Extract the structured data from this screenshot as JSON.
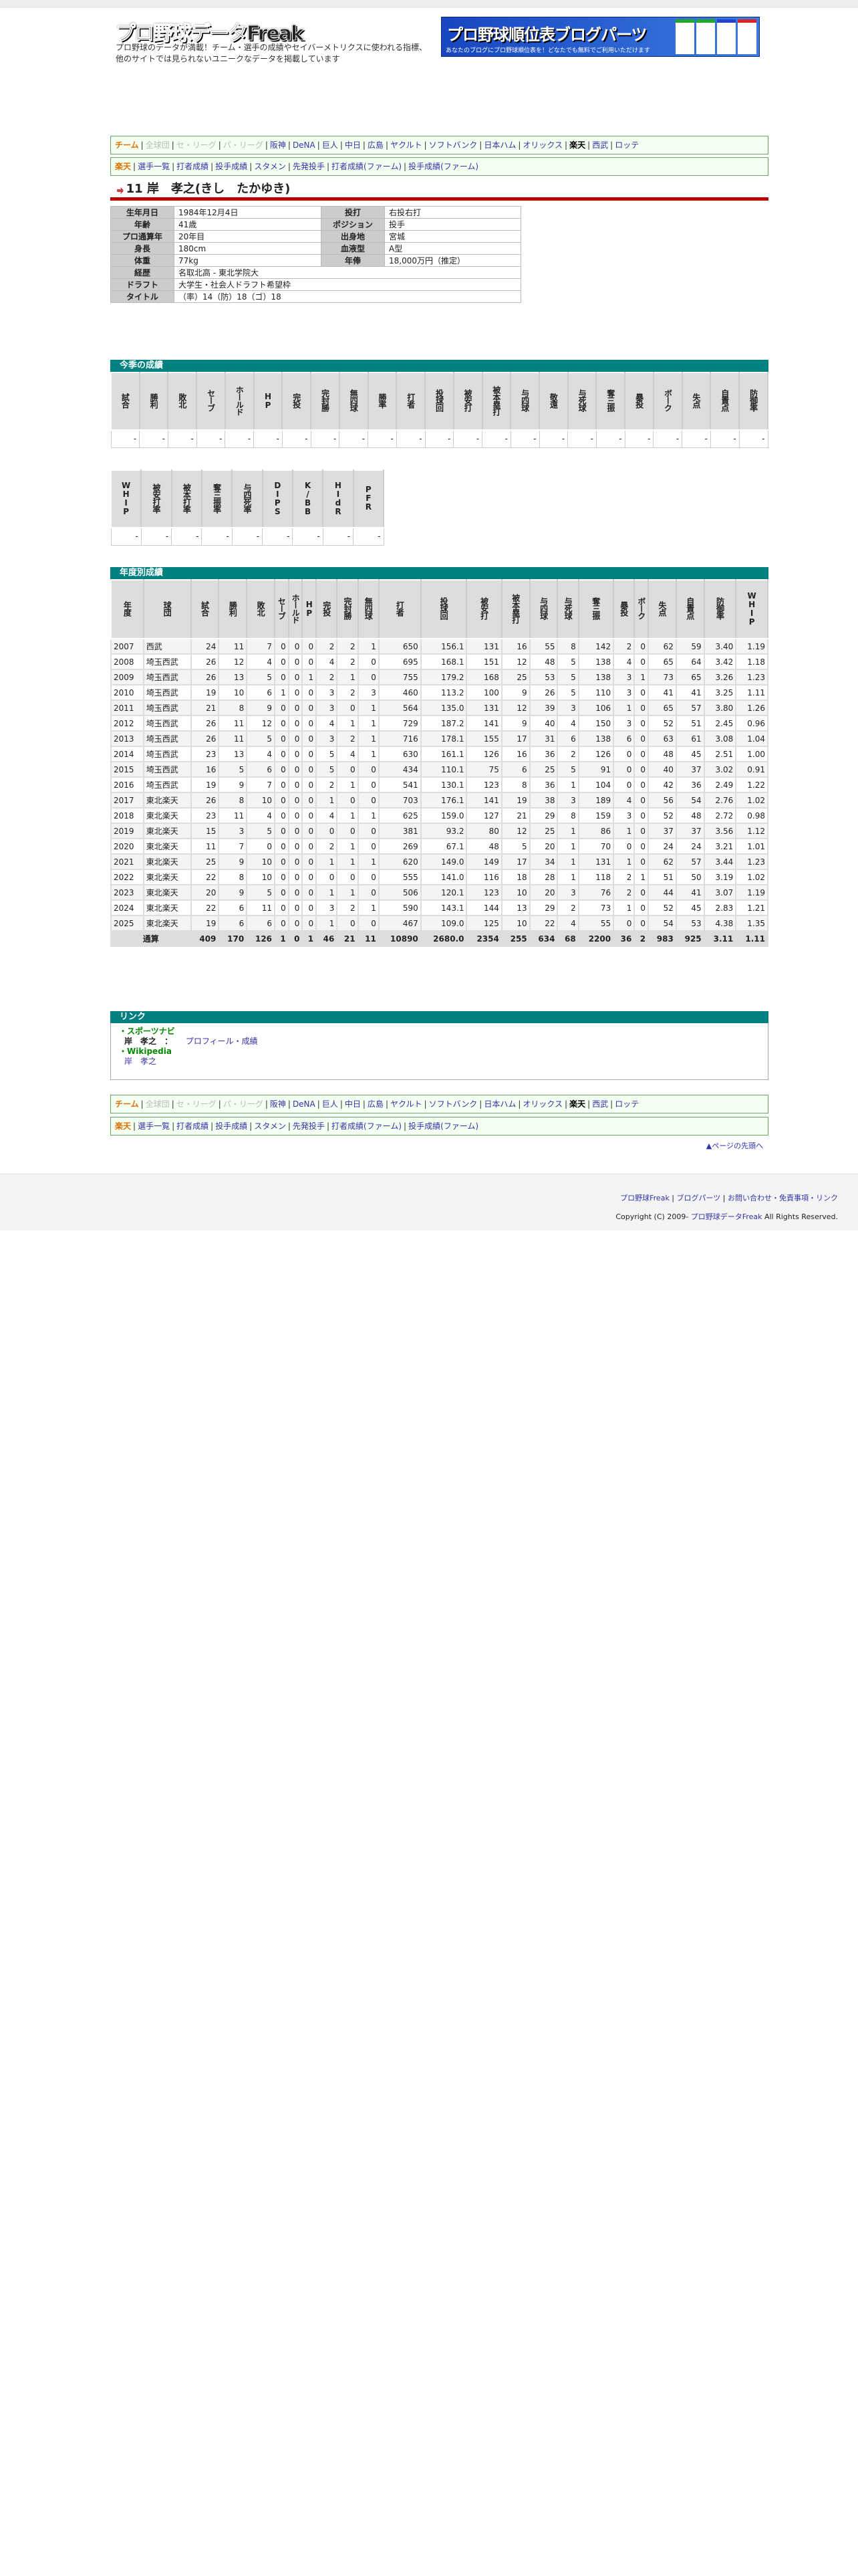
{
  "header": {
    "logo": "プロ野球データFreak",
    "tagline": "プロ野球のデータが満載！チーム・選手の成績やセイバーメトリクスに使われる指標、他のサイトでは見られないユニークなデータを掲載しています",
    "banner_title": "プロ野球順位表ブログパーツ",
    "banner_sub": "あなたのブログにプロ野球順位表を！どなたでも無料でご利用いただけます"
  },
  "nav_teams": {
    "label": "チーム",
    "items": [
      {
        "t": "全球団",
        "s": "g"
      },
      {
        "t": "セ・リーグ",
        "s": "g"
      },
      {
        "t": "パ・リーグ",
        "s": "g"
      },
      {
        "t": "阪神"
      },
      {
        "t": "DeNA"
      },
      {
        "t": "巨人"
      },
      {
        "t": "中日"
      },
      {
        "t": "広島"
      },
      {
        "t": "ヤクルト"
      },
      {
        "t": "ソフトバンク"
      },
      {
        "t": "日本ハム"
      },
      {
        "t": "オリックス"
      },
      {
        "t": "楽天",
        "s": "cur"
      },
      {
        "t": "西武"
      },
      {
        "t": "ロッテ"
      }
    ]
  },
  "nav_team": {
    "label": "楽天",
    "items": [
      {
        "t": "選手一覧"
      },
      {
        "t": "打者成績"
      },
      {
        "t": "投手成績"
      },
      {
        "t": "スタメン"
      },
      {
        "t": "先発投手"
      },
      {
        "t": "打者成績(ファーム)"
      },
      {
        "t": "投手成績(ファーム)"
      }
    ]
  },
  "player": {
    "title": "11 岸　孝之(きし　たかゆき)",
    "team_icon": "eagles-logo-icon"
  },
  "profile": [
    [
      "生年月日",
      "1984年12月4日",
      "投打",
      "右投右打"
    ],
    [
      "年齢",
      "41歳",
      "ポジション",
      "投手"
    ],
    [
      "プロ通算年",
      "20年目",
      "出身地",
      "宮城"
    ],
    [
      "身長",
      "180cm",
      "血液型",
      "A型"
    ],
    [
      "体重",
      "77kg",
      "年俸",
      "18,000万円（推定）"
    ],
    [
      "経歴",
      "名取北高 - 東北学院大"
    ],
    [
      "ドラフト",
      "大学生・社会人ドラフト希望枠"
    ],
    [
      "タイトル",
      "（率）14（防）18（ゴ）18"
    ]
  ],
  "season": {
    "title": "今季の成績",
    "headers": [
      "試合",
      "勝利",
      "敗北",
      "セーブ",
      "ホールド",
      "HP",
      "完投",
      "完封勝",
      "無四球",
      "勝率",
      "打者",
      "投球回",
      "被安打",
      "被本塁打",
      "与四球",
      "敬遠",
      "与死球",
      "奪三振",
      "暴投",
      "ボーク",
      "失点",
      "自責点",
      "防御率"
    ],
    "values": [
      "-",
      "-",
      "-",
      "-",
      "-",
      "-",
      "-",
      "-",
      "-",
      "-",
      "-",
      "-",
      "-",
      "-",
      "-",
      "-",
      "-",
      "-",
      "-",
      "-",
      "-",
      "-",
      "-"
    ],
    "headers2": [
      "WHIP",
      "被安打率",
      "被本打率",
      "奪三振率",
      "与四死率",
      "DIPS",
      "K/BB",
      "HIdR",
      "PFR"
    ],
    "values2": [
      "-",
      "-",
      "-",
      "-",
      "-",
      "-",
      "-",
      "-",
      "-"
    ]
  },
  "yearly": {
    "title": "年度別成績",
    "headers": [
      "年度",
      "球団",
      "試合",
      "勝利",
      "敗北",
      "セーブ",
      "ホールド",
      "HP",
      "完投",
      "完封勝",
      "無四球",
      "打者",
      "投球回",
      "被安打",
      "被本塁打",
      "与四球",
      "与死球",
      "奪三振",
      "暴投",
      "ボーク",
      "失点",
      "自責点",
      "防御率",
      "WHIP"
    ],
    "rows": [
      [
        "2007",
        "西武",
        "24",
        "11",
        "7",
        "0",
        "0",
        "0",
        "2",
        "2",
        "1",
        "650",
        "156.1",
        "131",
        "16",
        "55",
        "8",
        "142",
        "2",
        "0",
        "62",
        "59",
        "3.40",
        "1.19"
      ],
      [
        "2008",
        "埼玉西武",
        "26",
        "12",
        "4",
        "0",
        "0",
        "0",
        "4",
        "2",
        "0",
        "695",
        "168.1",
        "151",
        "12",
        "48",
        "5",
        "138",
        "4",
        "0",
        "65",
        "64",
        "3.42",
        "1.18"
      ],
      [
        "2009",
        "埼玉西武",
        "26",
        "13",
        "5",
        "0",
        "0",
        "1",
        "2",
        "1",
        "0",
        "755",
        "179.2",
        "168",
        "25",
        "53",
        "5",
        "138",
        "3",
        "1",
        "73",
        "65",
        "3.26",
        "1.23"
      ],
      [
        "2010",
        "埼玉西武",
        "19",
        "10",
        "6",
        "1",
        "0",
        "0",
        "3",
        "2",
        "3",
        "460",
        "113.2",
        "100",
        "9",
        "26",
        "5",
        "110",
        "3",
        "0",
        "41",
        "41",
        "3.25",
        "1.11"
      ],
      [
        "2011",
        "埼玉西武",
        "21",
        "8",
        "9",
        "0",
        "0",
        "0",
        "3",
        "0",
        "1",
        "564",
        "135.0",
        "131",
        "12",
        "39",
        "3",
        "106",
        "1",
        "0",
        "65",
        "57",
        "3.80",
        "1.26"
      ],
      [
        "2012",
        "埼玉西武",
        "26",
        "11",
        "12",
        "0",
        "0",
        "0",
        "4",
        "1",
        "1",
        "729",
        "187.2",
        "141",
        "9",
        "40",
        "4",
        "150",
        "3",
        "0",
        "52",
        "51",
        "2.45",
        "0.96"
      ],
      [
        "2013",
        "埼玉西武",
        "26",
        "11",
        "5",
        "0",
        "0",
        "0",
        "3",
        "2",
        "1",
        "716",
        "178.1",
        "155",
        "17",
        "31",
        "6",
        "138",
        "6",
        "0",
        "63",
        "61",
        "3.08",
        "1.04"
      ],
      [
        "2014",
        "埼玉西武",
        "23",
        "13",
        "4",
        "0",
        "0",
        "0",
        "5",
        "4",
        "1",
        "630",
        "161.1",
        "126",
        "16",
        "36",
        "2",
        "126",
        "0",
        "0",
        "48",
        "45",
        "2.51",
        "1.00"
      ],
      [
        "2015",
        "埼玉西武",
        "16",
        "5",
        "6",
        "0",
        "0",
        "0",
        "5",
        "0",
        "0",
        "434",
        "110.1",
        "75",
        "6",
        "25",
        "5",
        "91",
        "0",
        "0",
        "40",
        "37",
        "3.02",
        "0.91"
      ],
      [
        "2016",
        "埼玉西武",
        "19",
        "9",
        "7",
        "0",
        "0",
        "0",
        "2",
        "1",
        "0",
        "541",
        "130.1",
        "123",
        "8",
        "36",
        "1",
        "104",
        "0",
        "0",
        "42",
        "36",
        "2.49",
        "1.22"
      ],
      [
        "2017",
        "東北楽天",
        "26",
        "8",
        "10",
        "0",
        "0",
        "0",
        "1",
        "0",
        "0",
        "703",
        "176.1",
        "141",
        "19",
        "38",
        "3",
        "189",
        "4",
        "0",
        "56",
        "54",
        "2.76",
        "1.02"
      ],
      [
        "2018",
        "東北楽天",
        "23",
        "11",
        "4",
        "0",
        "0",
        "0",
        "4",
        "1",
        "1",
        "625",
        "159.0",
        "127",
        "21",
        "29",
        "8",
        "159",
        "3",
        "0",
        "52",
        "48",
        "2.72",
        "0.98"
      ],
      [
        "2019",
        "東北楽天",
        "15",
        "3",
        "5",
        "0",
        "0",
        "0",
        "0",
        "0",
        "0",
        "381",
        "93.2",
        "80",
        "12",
        "25",
        "1",
        "86",
        "1",
        "0",
        "37",
        "37",
        "3.56",
        "1.12"
      ],
      [
        "2020",
        "東北楽天",
        "11",
        "7",
        "0",
        "0",
        "0",
        "0",
        "2",
        "1",
        "0",
        "269",
        "67.1",
        "48",
        "5",
        "20",
        "1",
        "70",
        "0",
        "0",
        "24",
        "24",
        "3.21",
        "1.01"
      ],
      [
        "2021",
        "東北楽天",
        "25",
        "9",
        "10",
        "0",
        "0",
        "0",
        "1",
        "1",
        "1",
        "620",
        "149.0",
        "149",
        "17",
        "34",
        "1",
        "131",
        "1",
        "0",
        "62",
        "57",
        "3.44",
        "1.23"
      ],
      [
        "2022",
        "東北楽天",
        "22",
        "8",
        "10",
        "0",
        "0",
        "0",
        "0",
        "0",
        "0",
        "555",
        "141.0",
        "116",
        "18",
        "28",
        "1",
        "118",
        "2",
        "1",
        "51",
        "50",
        "3.19",
        "1.02"
      ],
      [
        "2023",
        "東北楽天",
        "20",
        "9",
        "5",
        "0",
        "0",
        "0",
        "1",
        "1",
        "0",
        "506",
        "120.1",
        "123",
        "10",
        "20",
        "3",
        "76",
        "2",
        "0",
        "44",
        "41",
        "3.07",
        "1.19"
      ],
      [
        "2024",
        "東北楽天",
        "22",
        "6",
        "11",
        "0",
        "0",
        "0",
        "3",
        "2",
        "1",
        "590",
        "143.1",
        "144",
        "13",
        "29",
        "2",
        "73",
        "1",
        "0",
        "52",
        "45",
        "2.83",
        "1.21"
      ],
      [
        "2025",
        "東北楽天",
        "19",
        "6",
        "6",
        "0",
        "0",
        "0",
        "1",
        "0",
        "0",
        "467",
        "109.0",
        "125",
        "10",
        "22",
        "4",
        "55",
        "0",
        "0",
        "54",
        "53",
        "4.38",
        "1.35"
      ]
    ],
    "total_label": "通算",
    "total": [
      "409",
      "170",
      "126",
      "1",
      "0",
      "1",
      "46",
      "21",
      "11",
      "10890",
      "2680.0",
      "2354",
      "255",
      "634",
      "68",
      "2200",
      "36",
      "2",
      "983",
      "925",
      "3.11",
      "1.11"
    ]
  },
  "links": {
    "title": "リンク",
    "src1": "・スポーツナビ",
    "name1": "岸　孝之　：",
    "link1": "プロフィール・成績",
    "src2": "・Wikipedia",
    "link2": "岸　孝之"
  },
  "to_top": "▲ページの先頭へ",
  "footer": {
    "links": [
      "プロ野球Freak",
      "ブログパーツ",
      "お問い合わせ・免責事項・リンク"
    ],
    "copyright_pre": "Copyright (C) 2009-",
    "copyright_link": "プロ野球データFreak",
    "copyright_post": "All Rights Reserved."
  }
}
